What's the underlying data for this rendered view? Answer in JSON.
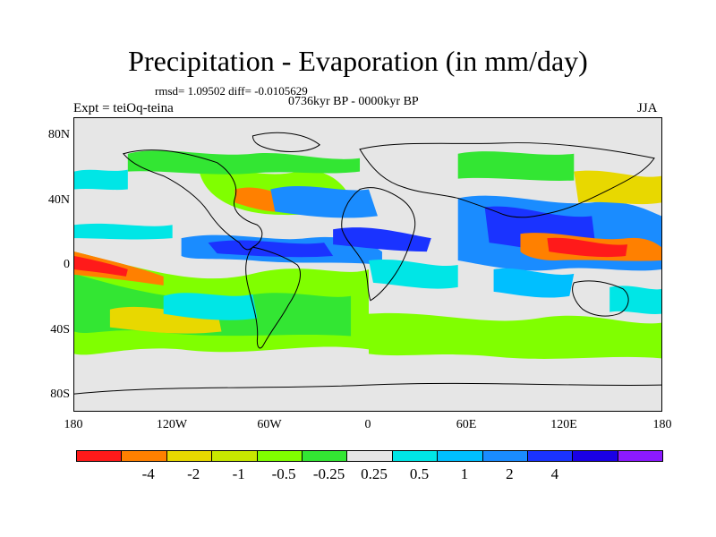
{
  "title": "Precipitation - Evaporation (in mm/day)",
  "stats": "rmsd= 1.09502 diff= -0.0105629",
  "period": "0736kyr BP - 0000kyr BP",
  "experiment": "Expt = teiOq-teina",
  "season": "JJA",
  "axes": {
    "y_ticks": [
      "80N",
      "40N",
      "0",
      "40S",
      "80S"
    ],
    "x_ticks": [
      "180",
      "120W",
      "60W",
      "0",
      "60E",
      "120E",
      "180"
    ]
  },
  "colorbar": {
    "colors": [
      "#ff1a1a",
      "#ff8000",
      "#e8d800",
      "#c7e800",
      "#80ff00",
      "#33e633",
      "#e6e6e6",
      "#00e6e6",
      "#00bfff",
      "#1a8cff",
      "#1a33ff",
      "#1a00e6",
      "#8c1aff"
    ],
    "labels": [
      "-4",
      "-2",
      "-1",
      "-0.5",
      "-0.25",
      "0.25",
      "0.5",
      "1",
      "2",
      "4"
    ]
  }
}
